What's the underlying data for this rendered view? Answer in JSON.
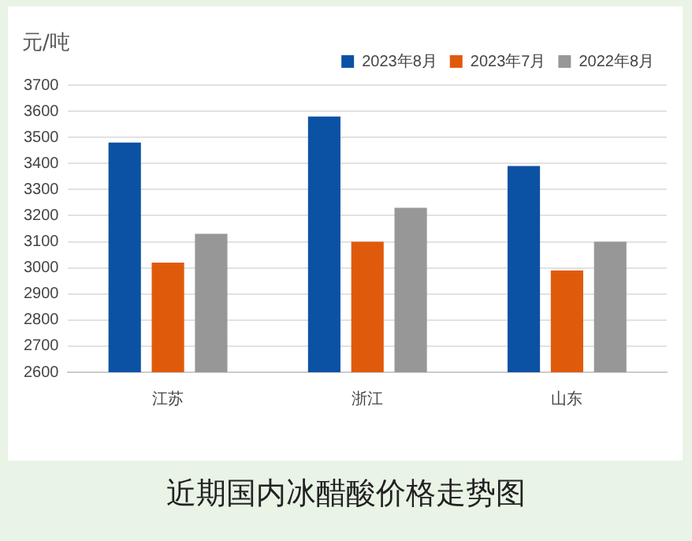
{
  "chart_data": {
    "type": "bar",
    "title": "近期国内冰醋酸价格走势图",
    "ylabel": "元/吨",
    "categories": [
      "江苏",
      "浙江",
      "山东"
    ],
    "series": [
      {
        "name": "2023年8月",
        "color": "#0b52a4",
        "values": [
          3480,
          3580,
          3390
        ]
      },
      {
        "name": "2023年7月",
        "color": "#e05a0c",
        "values": [
          3020,
          3100,
          2990
        ]
      },
      {
        "name": "2022年8月",
        "color": "#979797",
        "values": [
          3130,
          3230,
          3100
        ]
      }
    ],
    "ylim": [
      2600,
      3700
    ],
    "yticks": [
      2600,
      2700,
      2800,
      2900,
      3000,
      3100,
      3200,
      3300,
      3400,
      3500,
      3600,
      3700
    ],
    "grid": "y",
    "legend": "top right"
  }
}
